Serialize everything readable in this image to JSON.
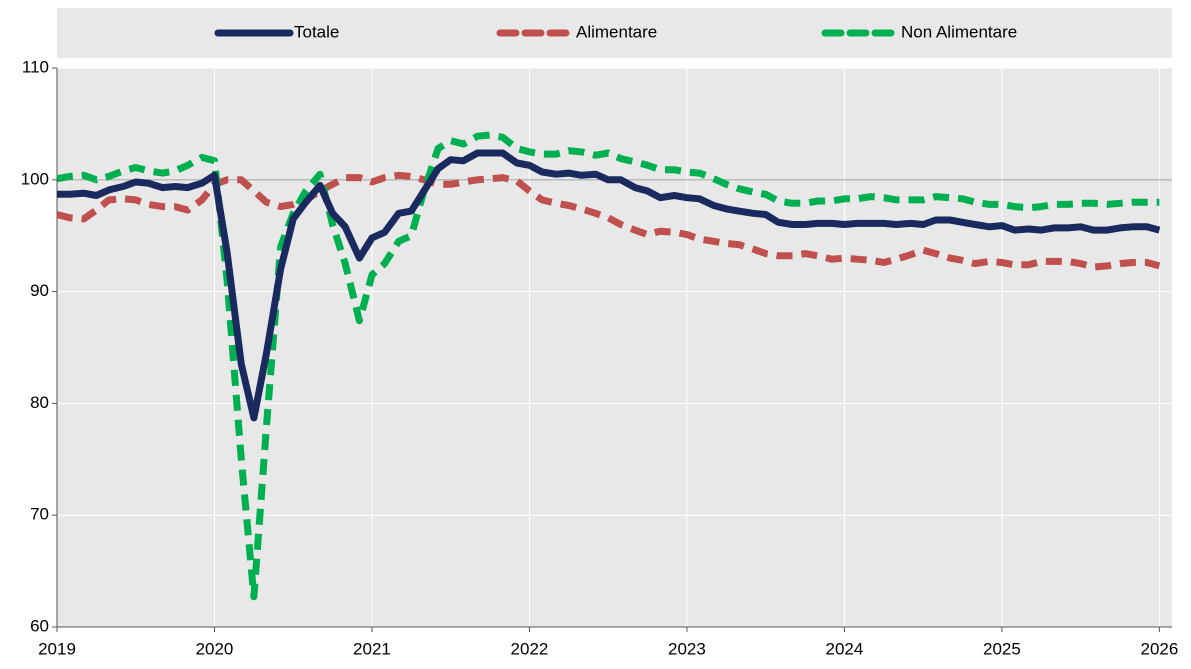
{
  "chart_data": {
    "type": "line",
    "x": [
      2019,
      2019.08,
      2019.17,
      2019.25,
      2019.33,
      2019.42,
      2019.5,
      2019.58,
      2019.67,
      2019.75,
      2019.83,
      2019.92,
      2020,
      2020.08,
      2020.17,
      2020.25,
      2020.33,
      2020.42,
      2020.5,
      2020.58,
      2020.67,
      2020.75,
      2020.83,
      2020.92,
      2021,
      2021.08,
      2021.17,
      2021.25,
      2021.33,
      2021.42,
      2021.5,
      2021.58,
      2021.67,
      2021.75,
      2021.83,
      2021.92,
      2022,
      2022.08,
      2022.17,
      2022.25,
      2022.33,
      2022.42,
      2022.5,
      2022.58,
      2022.67,
      2022.75,
      2022.83,
      2022.92,
      2023,
      2023.08,
      2023.17,
      2023.25,
      2023.33,
      2023.42,
      2023.5,
      2023.58,
      2023.67,
      2023.75,
      2023.83,
      2023.92,
      2024,
      2024.08,
      2024.17,
      2024.25,
      2024.33,
      2024.42,
      2024.5,
      2024.58,
      2024.67,
      2024.75,
      2024.83,
      2024.92,
      2025,
      2025.08,
      2025.17,
      2025.25,
      2025.33,
      2025.42,
      2025.5,
      2025.58,
      2025.67,
      2025.75,
      2025.83,
      2025.92,
      2026
    ],
    "series": [
      {
        "name": "Totale",
        "color": "#1b2a5e",
        "dash": "solid",
        "values": [
          98.7,
          98.7,
          98.8,
          98.6,
          99.1,
          99.4,
          99.8,
          99.7,
          99.3,
          99.4,
          99.3,
          99.7,
          100.4,
          93.5,
          83.5,
          78.7,
          84.5,
          92,
          96.5,
          98,
          99.5,
          97,
          95.8,
          93,
          94.8,
          95.3,
          97,
          97.2,
          99,
          101,
          101.8,
          101.7,
          102.4,
          102.4,
          102.4,
          101.5,
          101.3,
          100.7,
          100.5,
          100.6,
          100.4,
          100.5,
          100,
          100,
          99.3,
          99,
          98.4,
          98.6,
          98.4,
          98.3,
          97.7,
          97.4,
          97.2,
          97,
          96.9,
          96.2,
          96,
          96,
          96.1,
          96.1,
          96,
          96.1,
          96.1,
          96.1,
          96,
          96.1,
          96,
          96.4,
          96.4,
          96.2,
          96,
          95.8,
          95.9,
          95.5,
          95.6,
          95.5,
          95.7,
          95.7,
          95.8,
          95.5,
          95.5,
          95.7,
          95.8,
          95.8,
          95.5
        ]
      },
      {
        "name": "Alimentare",
        "color": "#c0504d",
        "dash": "dashed",
        "values": [
          96.9,
          96.6,
          96.5,
          97.3,
          98.2,
          98.3,
          98.2,
          97.8,
          97.6,
          97.6,
          97.3,
          98.2,
          99.6,
          100,
          100,
          99,
          98,
          97.6,
          97.8,
          98.2,
          99,
          99.6,
          100.2,
          100.2,
          99.8,
          100.2,
          100.4,
          100.3,
          100,
          99.6,
          99.6,
          99.8,
          100,
          100.1,
          100.2,
          99.9,
          99,
          98.2,
          97.9,
          97.7,
          97.4,
          97,
          96.6,
          96,
          95.5,
          95.1,
          95.4,
          95.3,
          95.1,
          94.7,
          94.5,
          94.3,
          94.2,
          93.8,
          93.4,
          93.2,
          93.2,
          93.4,
          93.2,
          92.9,
          93,
          92.9,
          92.8,
          92.6,
          92.9,
          93.3,
          93.7,
          93.4,
          93,
          92.8,
          92.5,
          92.7,
          92.6,
          92.4,
          92.4,
          92.7,
          92.7,
          92.7,
          92.5,
          92.2,
          92.3,
          92.5,
          92.6,
          92.6,
          92.3
        ]
      },
      {
        "name": "Non Alimentare",
        "color": "#00b050",
        "dash": "dashed",
        "values": [
          100.1,
          100.3,
          100.4,
          100,
          100.3,
          100.8,
          101.1,
          100.8,
          100.6,
          100.8,
          101.3,
          102,
          101.7,
          91,
          75,
          62.7,
          78,
          94,
          97,
          99,
          100.5,
          96,
          92.5,
          87.4,
          91.5,
          92.5,
          94.5,
          95,
          99,
          102.8,
          103.5,
          103.2,
          103.9,
          104,
          103.8,
          102.8,
          102.5,
          102.3,
          102.3,
          102.6,
          102.5,
          102.2,
          102.4,
          101.9,
          101.6,
          101.3,
          100.9,
          100.9,
          100.7,
          100.6,
          100.1,
          99.6,
          99.2,
          98.9,
          98.7,
          98.1,
          97.9,
          97.9,
          98.1,
          98.1,
          98.3,
          98.3,
          98.5,
          98.4,
          98.2,
          98.2,
          98.2,
          98.5,
          98.4,
          98.3,
          98,
          97.8,
          97.8,
          97.6,
          97.5,
          97.6,
          97.8,
          97.8,
          97.9,
          97.9,
          97.8,
          97.9,
          98,
          98,
          98
        ]
      }
    ],
    "xlim": [
      2019,
      2026.08
    ],
    "xticks": [
      2019,
      2020,
      2021,
      2022,
      2023,
      2024,
      2025,
      2026
    ],
    "ylim": [
      60,
      110
    ],
    "yticks": [
      60,
      70,
      80,
      90,
      100,
      110
    ],
    "grid": true,
    "reference_line": 100,
    "legend": "top"
  }
}
